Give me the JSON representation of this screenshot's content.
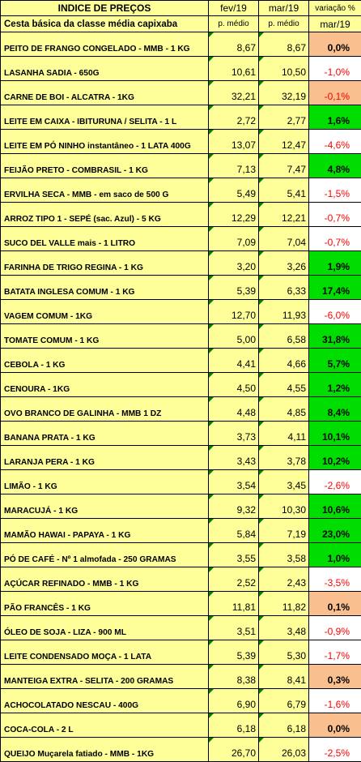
{
  "header": {
    "title": "INDICE DE PREÇOS",
    "subtitle": "Cesta básica da classe média capixaba",
    "month1": "fev/19",
    "month2": "mar/19",
    "variation_label": "variação %",
    "variation_month": "mar/19",
    "avg_label1": "p. médio",
    "avg_label2": "p. médio"
  },
  "rows": [
    {
      "product": "PEITO DE FRANGO CONGELADO - MMB - 1 KG",
      "fev": "8,67",
      "mar": "8,67",
      "var": "0,0%",
      "status": "flat"
    },
    {
      "product": "LASANHA SADIA  - 650G",
      "fev": "10,61",
      "mar": "10,50",
      "var": "-1,0%",
      "status": "down"
    },
    {
      "product": "CARNE DE BOI - ALCATRA  - 1KG",
      "fev": "32,21",
      "mar": "32,19",
      "var": "-0,1%",
      "status": "neg-peach"
    },
    {
      "product": "LEITE EM CAIXA - IBITURUNA / SELITA - 1 L",
      "fev": "2,72",
      "mar": "2,77",
      "var": "1,6%",
      "status": "up"
    },
    {
      "product": "LEITE EM PÓ NINHO instantâneo - 1 LATA 400G",
      "fev": "13,07",
      "mar": "12,47",
      "var": "-4,6%",
      "status": "down"
    },
    {
      "product": "FEIJÃO PRETO - COMBRASIL - 1 KG",
      "fev": "7,13",
      "mar": "7,47",
      "var": "4,8%",
      "status": "up"
    },
    {
      "product": "ERVILHA SECA - MMB - em saco de 500 G",
      "fev": "5,49",
      "mar": "5,41",
      "var": "-1,5%",
      "status": "down"
    },
    {
      "product": "ARROZ TIPO 1 - SEPÉ (sac. Azul) - 5 KG",
      "fev": "12,29",
      "mar": "12,21",
      "var": "-0,7%",
      "status": "down"
    },
    {
      "product": "SUCO DEL VALLE mais - 1 LITRO",
      "fev": "7,09",
      "mar": "7,04",
      "var": "-0,7%",
      "status": "down"
    },
    {
      "product": "FARINHA DE TRIGO REGINA - 1 KG",
      "fev": "3,20",
      "mar": "3,26",
      "var": "1,9%",
      "status": "up"
    },
    {
      "product": "BATATA INGLESA COMUM - 1 KG",
      "fev": "5,39",
      "mar": "6,33",
      "var": "17,4%",
      "status": "up"
    },
    {
      "product": "VAGEM COMUM - 1KG",
      "fev": "12,70",
      "mar": "11,93",
      "var": "-6,0%",
      "status": "down"
    },
    {
      "product": "TOMATE COMUM - 1 KG",
      "fev": "5,00",
      "mar": "6,58",
      "var": "31,8%",
      "status": "up"
    },
    {
      "product": "CEBOLA - 1 KG",
      "fev": "4,41",
      "mar": "4,66",
      "var": "5,7%",
      "status": "up"
    },
    {
      "product": "CENOURA - 1KG",
      "fev": "4,50",
      "mar": "4,55",
      "var": "1,2%",
      "status": "up"
    },
    {
      "product": "OVO BRANCO DE GALINHA - MMB 1 DZ",
      "fev": "4,48",
      "mar": "4,85",
      "var": "8,4%",
      "status": "up"
    },
    {
      "product": "BANANA PRATA  - 1 KG",
      "fev": "3,73",
      "mar": "4,11",
      "var": "10,1%",
      "status": "up"
    },
    {
      "product": "LARANJA PERA - 1  KG",
      "fev": "3,43",
      "mar": "3,78",
      "var": "10,2%",
      "status": "up"
    },
    {
      "product": "LIMÃO - 1  KG",
      "fev": "3,54",
      "mar": "3,45",
      "var": "-2,6%",
      "status": "down"
    },
    {
      "product": "MARACUJÁ - 1 KG",
      "fev": "9,32",
      "mar": "10,30",
      "var": "10,6%",
      "status": "up"
    },
    {
      "product": "MAMÃO HAWAI - PAPAYA - 1 KG",
      "fev": "5,84",
      "mar": "7,19",
      "var": "23,0%",
      "status": "up"
    },
    {
      "product": "PÓ DE CAFÉ - Nº 1 almofada - 250 GRAMAS",
      "fev": "3,55",
      "mar": "3,58",
      "var": "1,0%",
      "status": "up"
    },
    {
      "product": "AÇÚCAR REFINADO - MMB - 1 KG",
      "fev": "2,52",
      "mar": "2,43",
      "var": "-3,5%",
      "status": "down"
    },
    {
      "product": "PÃO FRANCÊS - 1 KG",
      "fev": "11,81",
      "mar": "11,82",
      "var": "0,1%",
      "status": "flat"
    },
    {
      "product": "ÓLEO DE SOJA - LIZA - 900 ML",
      "fev": "3,51",
      "mar": "3,48",
      "var": "-0,9%",
      "status": "down"
    },
    {
      "product": "LEITE CONDENSADO MOÇA - 1 LATA",
      "fev": "5,39",
      "mar": "5,30",
      "var": "-1,7%",
      "status": "down"
    },
    {
      "product": "MANTEIGA EXTRA - SELITA - 200 GRAMAS",
      "fev": "8,38",
      "mar": "8,41",
      "var": "0,3%",
      "status": "flat"
    },
    {
      "product": "ACHOCOLATADO NESCAU - 400G",
      "fev": "6,90",
      "mar": "6,79",
      "var": "-1,6%",
      "status": "down"
    },
    {
      "product": "COCA-COLA - 2 L",
      "fev": "6,18",
      "mar": "6,18",
      "var": "0,0%",
      "status": "flat"
    },
    {
      "product": "QUEIJO Muçarela fatiado - MMB - 1KG",
      "fev": "26,70",
      "mar": "26,03",
      "var": "-2,5%",
      "status": "down"
    }
  ]
}
